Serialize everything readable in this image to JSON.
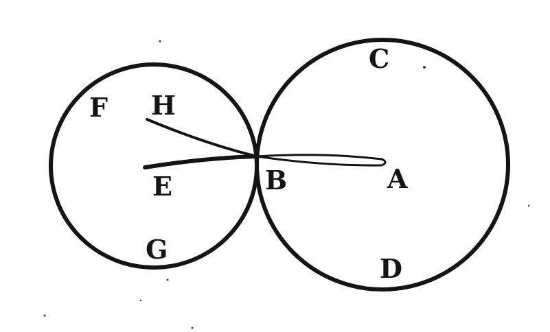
{
  "figure": {
    "description_free": true,
    "labels": {
      "A": "A",
      "B": "B",
      "C": "C",
      "D": "D",
      "E": "E",
      "F": "F",
      "G": "G",
      "H": "H"
    },
    "ink_color": "#141414",
    "background_color": "#ffffff"
  }
}
